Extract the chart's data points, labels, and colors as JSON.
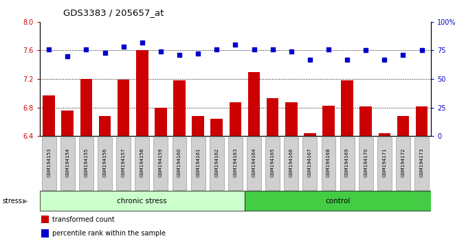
{
  "title": "GDS3383 / 205657_at",
  "samples": [
    "GSM194153",
    "GSM194154",
    "GSM194155",
    "GSM194156",
    "GSM194157",
    "GSM194158",
    "GSM194159",
    "GSM194160",
    "GSM194161",
    "GSM194162",
    "GSM194163",
    "GSM194164",
    "GSM194165",
    "GSM194166",
    "GSM194167",
    "GSM194168",
    "GSM194169",
    "GSM194170",
    "GSM194171",
    "GSM194172",
    "GSM194173"
  ],
  "bar_values": [
    6.97,
    6.76,
    7.2,
    6.68,
    7.19,
    7.6,
    6.8,
    7.18,
    6.68,
    6.64,
    6.87,
    7.3,
    6.93,
    6.87,
    6.44,
    6.83,
    7.18,
    6.82,
    6.44,
    6.68,
    6.82
  ],
  "dot_values": [
    76,
    70,
    76,
    73,
    78,
    82,
    74,
    71,
    72,
    76,
    80,
    76,
    76,
    74,
    67,
    76,
    67,
    75,
    67,
    71,
    75
  ],
  "ylim_left": [
    6.4,
    8.0
  ],
  "ylim_right": [
    0,
    100
  ],
  "yticks_left": [
    6.4,
    6.8,
    7.2,
    7.6,
    8.0
  ],
  "yticks_right": [
    0,
    25,
    50,
    75,
    100
  ],
  "bar_color": "#cc0000",
  "dot_color": "#0000cc",
  "chronic_stress_count": 11,
  "group1_label": "chronic stress",
  "group2_label": "control",
  "group1_color": "#ccffcc",
  "group2_color": "#44cc44",
  "stress_label": "stress",
  "legend_bar_label": "transformed count",
  "legend_dot_label": "percentile rank within the sample",
  "xtick_bg": "#cccccc",
  "xtick_box_color": "#aaaaaa"
}
